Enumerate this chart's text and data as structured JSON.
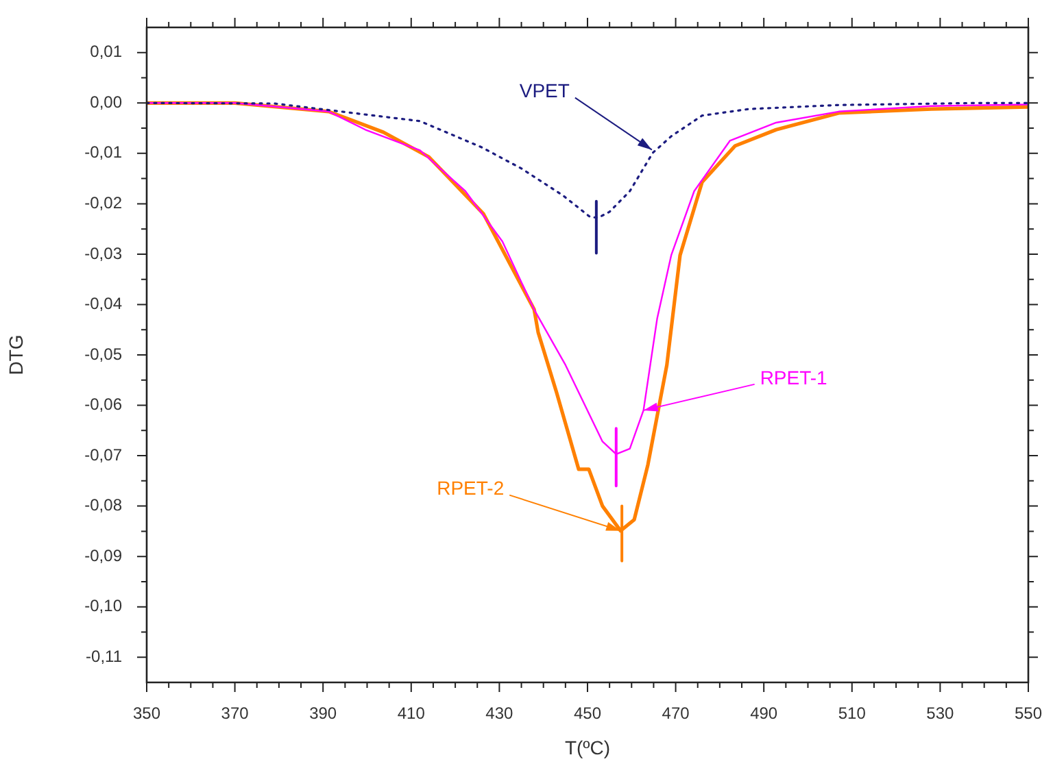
{
  "chart_data": {
    "type": "line",
    "xlabel": "T(ºC)",
    "ylabel": "DTG",
    "xlim": [
      350,
      550
    ],
    "ylim": [
      -0.115,
      0.015
    ],
    "xticks": [
      350,
      {
        "value": 355,
        "label": null
      },
      {
        "value": 360,
        "label": null
      },
      {
        "value": 365,
        "label": null
      },
      370,
      {
        "value": 375,
        "label": null
      },
      {
        "value": 380,
        "label": null
      },
      {
        "value": 385,
        "label": null
      },
      390,
      {
        "value": 395,
        "label": null
      },
      {
        "value": 400,
        "label": null
      },
      {
        "value": 405,
        "label": null
      },
      410,
      {
        "value": 415,
        "label": null
      },
      {
        "value": 420,
        "label": null
      },
      {
        "value": 425,
        "label": null
      },
      430,
      {
        "value": 435,
        "label": null
      },
      {
        "value": 440,
        "label": null
      },
      {
        "value": 445,
        "label": null
      },
      450,
      {
        "value": 455,
        "label": null
      },
      {
        "value": 460,
        "label": null
      },
      {
        "value": 465,
        "label": null
      },
      470,
      {
        "value": 475,
        "label": null
      },
      {
        "value": 480,
        "label": null
      },
      {
        "value": 485,
        "label": null
      },
      490,
      {
        "value": 495,
        "label": null
      },
      {
        "value": 500,
        "label": null
      },
      {
        "value": 505,
        "label": null
      },
      510,
      {
        "value": 515,
        "label": null
      },
      {
        "value": 520,
        "label": null
      },
      {
        "value": 525,
        "label": null
      },
      530,
      {
        "value": 535,
        "label": null
      },
      {
        "value": 540,
        "label": null
      },
      {
        "value": 545,
        "label": null
      },
      550
    ],
    "yticks": [
      {
        "value": -0.11,
        "label": "-0,11"
      },
      {
        "value": -0.105,
        "label": null
      },
      {
        "value": -0.1,
        "label": "-0,10"
      },
      {
        "value": -0.095,
        "label": null
      },
      {
        "value": -0.09,
        "label": "-0,09"
      },
      {
        "value": -0.085,
        "label": null
      },
      {
        "value": -0.08,
        "label": "-0,08"
      },
      {
        "value": -0.075,
        "label": null
      },
      {
        "value": -0.07,
        "label": "-0,07"
      },
      {
        "value": -0.065,
        "label": null
      },
      {
        "value": -0.06,
        "label": "-0,06"
      },
      {
        "value": -0.055,
        "label": null
      },
      {
        "value": -0.05,
        "label": "-0,05"
      },
      {
        "value": -0.045,
        "label": null
      },
      {
        "value": -0.04,
        "label": "-0,04"
      },
      {
        "value": -0.035,
        "label": null
      },
      {
        "value": -0.03,
        "label": "-0,03"
      },
      {
        "value": -0.025,
        "label": null
      },
      {
        "value": -0.02,
        "label": "-0,02"
      },
      {
        "value": -0.015,
        "label": null
      },
      {
        "value": -0.01,
        "label": "-0,01"
      },
      {
        "value": -0.005,
        "label": null
      },
      {
        "value": 0,
        "label": "0,00"
      },
      {
        "value": 0.005,
        "label": null
      },
      {
        "value": 0.01,
        "label": "0,01"
      }
    ],
    "marker": "none",
    "series": [
      {
        "color": "#1c1c80",
        "line_style": "dotted",
        "x": [
          350,
          379,
          412,
          426,
          435,
          444.5,
          450.7,
          452.6,
          455,
          459.6,
          464.8,
          469,
          476,
          486.6,
          507,
          538,
          550
        ],
        "values": [
          0,
          -0.0001,
          -0.0036,
          -0.0088,
          -0.013,
          -0.0184,
          -0.0227,
          -0.0227,
          -0.0216,
          -0.0175,
          -0.0099,
          -0.0066,
          -0.0025,
          -0.0012,
          -0.0004,
          0,
          0
        ]
      },
      {
        "color": "#ff00ff",
        "line_style": "solid",
        "x": [
          350,
          370,
          391.3,
          399.6,
          412,
          422.3,
          430.7,
          437.9,
          445,
          453.4,
          456.5,
          459.6,
          462.7,
          465.8,
          469,
          474.2,
          482.3,
          492.8,
          507,
          528,
          550
        ],
        "values": [
          0,
          0,
          -0.0017,
          -0.0053,
          -0.0094,
          -0.0175,
          -0.0275,
          -0.041,
          -0.052,
          -0.0672,
          -0.0697,
          -0.0686,
          -0.061,
          -0.0428,
          -0.0302,
          -0.0175,
          -0.0075,
          -0.0039,
          -0.0017,
          -0.0006,
          -0.0003
        ]
      },
      {
        "color": "#ff8000",
        "line_style": "solid",
        "x": [
          350,
          370,
          391.3,
          403.7,
          414,
          426.4,
          437.9,
          438.8,
          443,
          448,
          450.3,
          453.4,
          457.5,
          460.6,
          463.7,
          468,
          471,
          476,
          483.5,
          492.8,
          507,
          528,
          550
        ],
        "values": [
          0,
          0,
          -0.0017,
          -0.0058,
          -0.0107,
          -0.022,
          -0.041,
          -0.0455,
          -0.0575,
          -0.0727,
          -0.0727,
          -0.08,
          -0.0849,
          -0.0827,
          -0.0718,
          -0.052,
          -0.0302,
          -0.0157,
          -0.0085,
          -0.0053,
          -0.002,
          -0.0012,
          -0.0008
        ]
      },
      {
        "color": "#1c1c80",
        "line_style": "solid",
        "x": [
          452,
          452
        ],
        "values": [
          -0.0195,
          -0.0298
        ]
      },
      {
        "color": "#ff00ff",
        "line_style": "solid",
        "x": [
          456.5,
          456.5
        ],
        "values": [
          -0.0646,
          -0.076
        ]
      },
      {
        "color": "#ff8000",
        "line_style": "solid",
        "x": [
          457.8,
          457.8
        ],
        "values": [
          -0.08,
          -0.0909
        ]
      }
    ],
    "annotations": [
      {
        "text": "VPET",
        "x": 464.6,
        "y": -0.0093
      },
      {
        "text": "RPET-1",
        "x": 462.7,
        "y": -0.061
      },
      {
        "text": "RPET-2",
        "x": 457.5,
        "y": -0.0849
      }
    ]
  }
}
